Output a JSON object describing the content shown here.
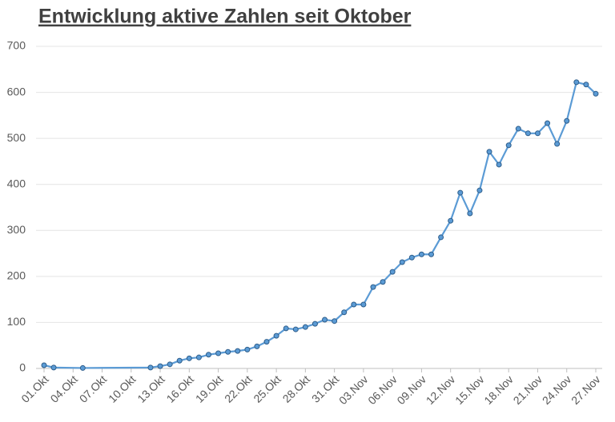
{
  "chart_data": {
    "type": "line",
    "title": "Entwicklung aktive Zahlen seit Oktober",
    "x": [
      "01.Okt",
      "02.Okt",
      "05.Okt",
      "12.Okt",
      "13.Okt",
      "14.Okt",
      "15.Okt",
      "16.Okt",
      "17.Okt",
      "18.Okt",
      "19.Okt",
      "20.Okt",
      "21.Okt",
      "22.Okt",
      "23.Okt",
      "24.Okt",
      "25.Okt",
      "26.Okt",
      "27.Okt",
      "28.Okt",
      "29.Okt",
      "30.Okt",
      "31.Okt",
      "01.Nov",
      "02.Nov",
      "03.Nov",
      "04.Nov",
      "05.Nov",
      "06.Nov",
      "07.Nov",
      "08.Nov",
      "09.Nov",
      "10.Nov",
      "11.Nov",
      "12.Nov",
      "13.Nov",
      "14.Nov",
      "15.Nov",
      "16.Nov",
      "17.Nov",
      "18.Nov",
      "19.Nov",
      "20.Nov",
      "21.Nov",
      "22.Nov",
      "23.Nov",
      "24.Nov",
      "25.Nov",
      "26.Nov",
      "27.Nov"
    ],
    "series": [
      {
        "color": "#5b9bd5",
        "values": [
          7,
          2,
          1,
          2,
          5,
          9,
          17,
          22,
          24,
          30,
          33,
          36,
          38,
          41,
          48,
          58,
          71,
          87,
          85,
          90,
          97,
          106,
          103,
          122,
          139,
          139,
          177,
          188,
          210,
          231,
          241,
          248,
          248,
          285,
          321,
          382,
          337,
          387,
          471,
          443,
          485,
          521,
          511,
          511,
          533,
          488,
          538,
          622,
          617,
          597
        ]
      }
    ],
    "ylim": [
      0,
      700
    ],
    "yticks": [
      0,
      100,
      200,
      300,
      400,
      500,
      600,
      700
    ],
    "xticks": [
      "01.Okt",
      "04.Okt",
      "07.Okt",
      "10.Okt",
      "13.Okt",
      "16.Okt",
      "19.Okt",
      "22.Okt",
      "25.Okt",
      "28.Okt",
      "31.Okt",
      "03.Nov",
      "06.Nov",
      "09.Nov",
      "12.Nov",
      "15.Nov",
      "18.Nov",
      "21.Nov",
      "24.Nov",
      "27.Nov"
    ],
    "grid": true
  }
}
